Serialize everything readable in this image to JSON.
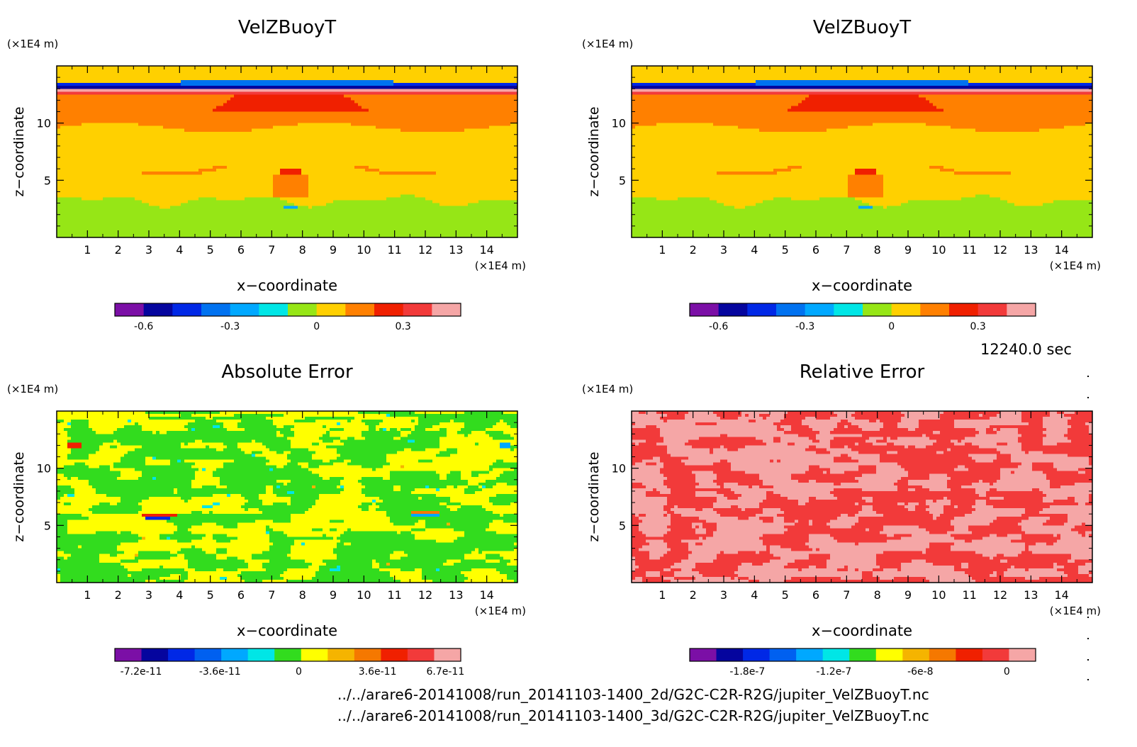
{
  "time_label": "12240.0 sec",
  "file_paths": [
    "../../arare6-20141008/run_20141103-1400_2d/G2C-C2R-R2G/jupiter_VelZBuoyT.nc",
    "../../arare6-20141008/run_20141103-1400_3d/G2C-C2R-R2G/jupiter_VelZBuoyT.nc"
  ],
  "chart_data": [
    {
      "type": "heatmap",
      "title": "VelZBuoyT",
      "xlabel": "x−coordinate",
      "ylabel": "z−coordinate",
      "x_unit": "(×1E4 m)",
      "y_unit": "(×1E4 m)",
      "xlim": [
        0,
        15
      ],
      "ylim": [
        0,
        15
      ],
      "x_ticks": [
        1,
        2,
        3,
        4,
        5,
        6,
        7,
        8,
        9,
        10,
        11,
        12,
        13,
        14
      ],
      "y_ticks": [
        5,
        10
      ],
      "colorbar": {
        "range": [
          -0.7,
          0.5
        ],
        "colors": [
          "#7b0fa6",
          "#05059e",
          "#0028e6",
          "#0072f0",
          "#00a8ff",
          "#00e6e6",
          "#96e616",
          "#ffd000",
          "#ff8000",
          "#f02000",
          "#f23a3a",
          "#f5a6a6"
        ],
        "labels": [
          "-0.6",
          "-0.3",
          "0",
          "0.3"
        ],
        "label_values": [
          -0.6,
          -0.3,
          0,
          0.3
        ]
      }
    },
    {
      "type": "heatmap",
      "title": "VelZBuoyT",
      "xlabel": "x−coordinate",
      "ylabel": "z−coordinate",
      "x_unit": "(×1E4 m)",
      "y_unit": "(×1E4 m)",
      "xlim": [
        0,
        15
      ],
      "ylim": [
        0,
        15
      ],
      "x_ticks": [
        1,
        2,
        3,
        4,
        5,
        6,
        7,
        8,
        9,
        10,
        11,
        12,
        13,
        14
      ],
      "y_ticks": [
        5,
        10
      ],
      "colorbar": {
        "range": [
          -0.7,
          0.5
        ],
        "colors": [
          "#7b0fa6",
          "#05059e",
          "#0028e6",
          "#0072f0",
          "#00a8ff",
          "#00e6e6",
          "#96e616",
          "#ffd000",
          "#ff8000",
          "#f02000",
          "#f23a3a",
          "#f5a6a6"
        ],
        "labels": [
          "-0.6",
          "-0.3",
          "0",
          "0.3"
        ],
        "label_values": [
          -0.6,
          -0.3,
          0,
          0.3
        ]
      }
    },
    {
      "type": "heatmap",
      "title": "Absolute Error",
      "xlabel": "x−coordinate",
      "ylabel": "z−coordinate",
      "x_unit": "(×1E4 m)",
      "y_unit": "(×1E4 m)",
      "xlim": [
        0,
        15
      ],
      "ylim": [
        0,
        15
      ],
      "x_ticks": [
        1,
        2,
        3,
        4,
        5,
        6,
        7,
        8,
        9,
        10,
        11,
        12,
        13,
        14
      ],
      "y_ticks": [
        5,
        10
      ],
      "colorbar": {
        "range": [
          -8.4e-11,
          7.4e-11
        ],
        "colors": [
          "#7b0fa6",
          "#05059e",
          "#0028e6",
          "#0060f0",
          "#00a8ff",
          "#00e6e6",
          "#32dc1e",
          "#ffff00",
          "#f5b400",
          "#f57800",
          "#f02000",
          "#f23a3a",
          "#f5a6a6"
        ],
        "labels": [
          "-7.2e-11",
          "-3.6e-11",
          "0",
          "3.6e-11",
          "6.7e-11"
        ],
        "label_values": [
          -7.2e-11,
          -3.6e-11,
          0,
          3.6e-11,
          6.7e-11
        ]
      }
    },
    {
      "type": "heatmap",
      "title": "Relative Error",
      "xlabel": "x−coordinate",
      "ylabel": "z−coordinate",
      "x_unit": "(×1E4 m)",
      "y_unit": "(×1E4 m)",
      "xlim": [
        0,
        15
      ],
      "ylim": [
        0,
        15
      ],
      "x_ticks": [
        1,
        2,
        3,
        4,
        5,
        6,
        7,
        8,
        9,
        10,
        11,
        12,
        13,
        14
      ],
      "y_ticks": [
        5,
        10
      ],
      "colorbar": {
        "range": [
          -2.2e-07,
          2e-08
        ],
        "colors": [
          "#7b0fa6",
          "#05059e",
          "#0028e6",
          "#0060f0",
          "#00a8ff",
          "#00e6e6",
          "#32dc1e",
          "#ffff00",
          "#f5b400",
          "#f57800",
          "#f02000",
          "#f23a3a",
          "#f5a6a6"
        ],
        "labels": [
          "-1.8e-7",
          "-1.2e-7",
          "-6e-8",
          "0"
        ],
        "label_values": [
          -1.8e-07,
          -1.2e-07,
          -6e-08,
          0
        ]
      }
    }
  ]
}
